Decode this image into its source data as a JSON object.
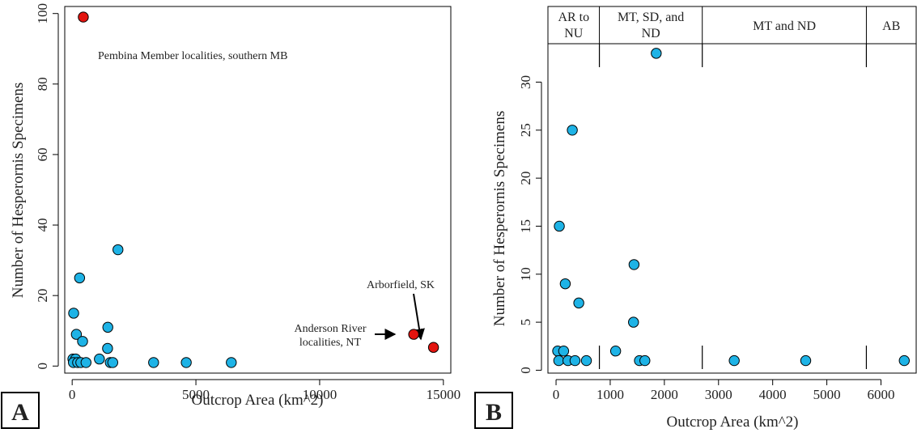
{
  "figure": {
    "panel_a_label": "A",
    "panel_b_label": "B"
  },
  "chart_data": [
    {
      "type": "scatter",
      "panel": "A",
      "xlabel": "Outcrop Area (km^2)",
      "ylabel": "Number of Hesperornis Specimens",
      "xlim": [
        -300,
        15300
      ],
      "ylim": [
        -2,
        102
      ],
      "xticks": [
        0,
        5000,
        10000,
        15000
      ],
      "xtick_labels": [
        "0",
        "5000",
        "10000",
        "15000"
      ],
      "yticks": [
        0,
        20,
        40,
        60,
        80,
        100
      ],
      "ytick_labels": [
        "0",
        "20",
        "40",
        "60",
        "80",
        "100"
      ],
      "grid": false,
      "colors": {
        "default": "#1EB3E6",
        "highlight": "#E3140F"
      },
      "points": [
        {
          "x": 60,
          "y": 15,
          "highlight": false
        },
        {
          "x": 300,
          "y": 25,
          "highlight": false
        },
        {
          "x": 170,
          "y": 9,
          "highlight": false
        },
        {
          "x": 420,
          "y": 7,
          "highlight": false
        },
        {
          "x": 1850,
          "y": 33,
          "highlight": false
        },
        {
          "x": 1440,
          "y": 11,
          "highlight": false
        },
        {
          "x": 1430,
          "y": 5,
          "highlight": false
        },
        {
          "x": 1100,
          "y": 2,
          "highlight": false
        },
        {
          "x": 30,
          "y": 2,
          "highlight": false
        },
        {
          "x": 140,
          "y": 2,
          "highlight": false
        },
        {
          "x": 50,
          "y": 1,
          "highlight": false
        },
        {
          "x": 220,
          "y": 1,
          "highlight": false
        },
        {
          "x": 350,
          "y": 1,
          "highlight": false
        },
        {
          "x": 560,
          "y": 1,
          "highlight": false
        },
        {
          "x": 1540,
          "y": 1,
          "highlight": false
        },
        {
          "x": 1640,
          "y": 1,
          "highlight": false
        },
        {
          "x": 3290,
          "y": 1,
          "highlight": false
        },
        {
          "x": 4610,
          "y": 1,
          "highlight": false
        },
        {
          "x": 6430,
          "y": 1,
          "highlight": false
        },
        {
          "x": 450,
          "y": 99,
          "highlight": true
        },
        {
          "x": 13800,
          "y": 9,
          "highlight": true
        },
        {
          "x": 14600,
          "y": 5.3,
          "highlight": true
        }
      ],
      "annotations": [
        {
          "text": "Pembina Member localities, southern MB"
        },
        {
          "lines": [
            "Anderson River",
            "localities, NT"
          ]
        },
        {
          "text": "Arborfield, SK"
        }
      ]
    },
    {
      "type": "scatter",
      "panel": "B",
      "xlabel": "Outcrop Area (km^2)",
      "ylabel": "Number of Hesperornis Specimens",
      "xlim": [
        -150,
        6650
      ],
      "ylim": [
        -0.3,
        34
      ],
      "xticks": [
        0,
        1000,
        2000,
        3000,
        4000,
        5000,
        6000
      ],
      "xtick_labels": [
        "0",
        "1000",
        "2000",
        "3000",
        "4000",
        "5000",
        "6000"
      ],
      "yticks": [
        0,
        5,
        10,
        15,
        20,
        25,
        30
      ],
      "ytick_labels": [
        "0",
        "5",
        "10",
        "15",
        "20",
        "25",
        "30"
      ],
      "grid": false,
      "colors": {
        "default": "#1EB3E6"
      },
      "points": [
        {
          "x": 60,
          "y": 15
        },
        {
          "x": 300,
          "y": 25
        },
        {
          "x": 170,
          "y": 9
        },
        {
          "x": 420,
          "y": 7
        },
        {
          "x": 1850,
          "y": 33
        },
        {
          "x": 1440,
          "y": 11
        },
        {
          "x": 1430,
          "y": 5
        },
        {
          "x": 1100,
          "y": 2
        },
        {
          "x": 30,
          "y": 2
        },
        {
          "x": 140,
          "y": 2
        },
        {
          "x": 50,
          "y": 1
        },
        {
          "x": 220,
          "y": 1
        },
        {
          "x": 350,
          "y": 1
        },
        {
          "x": 560,
          "y": 1
        },
        {
          "x": 1540,
          "y": 1
        },
        {
          "x": 1640,
          "y": 1
        },
        {
          "x": 3290,
          "y": 1
        },
        {
          "x": 4610,
          "y": 1
        },
        {
          "x": 6430,
          "y": 1
        }
      ],
      "region_boundaries": [
        800,
        2700,
        5730
      ],
      "regions": [
        {
          "lines": [
            "AR to",
            "NU"
          ],
          "x_from": -150,
          "x_to": 800
        },
        {
          "lines": [
            "MT, SD, and",
            "ND"
          ],
          "x_from": 800,
          "x_to": 2700
        },
        {
          "lines": [
            "MT and ND"
          ],
          "x_from": 2700,
          "x_to": 5730
        },
        {
          "lines": [
            "AB"
          ],
          "x_from": 5730,
          "x_to": 6650
        }
      ]
    }
  ]
}
